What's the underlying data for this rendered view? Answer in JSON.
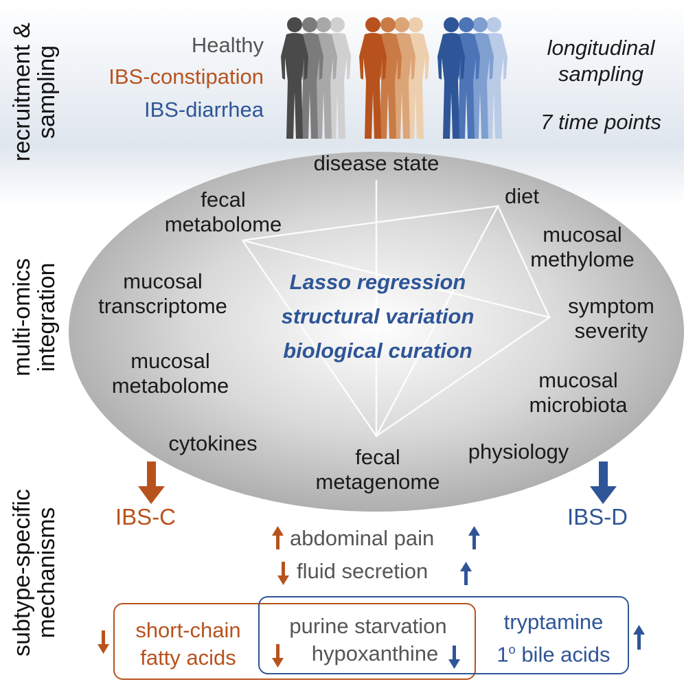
{
  "colors": {
    "healthy": "#555555",
    "ibs_c": "#b8521d",
    "ibs_d": "#2e5597",
    "method": "#2e5597",
    "gray_text": "#555555",
    "ellipse": "#b8b8b8"
  },
  "side_labels": {
    "recruitment": [
      "recruitment &",
      "sampling"
    ],
    "integration": [
      "multi-omics",
      "integration"
    ],
    "mechanisms": [
      "subtype-specific",
      "mechanisms"
    ]
  },
  "cohorts": {
    "healthy": "Healthy",
    "ibs_c": "IBS-constipation",
    "ibs_d": "IBS-diarrhea"
  },
  "sampling": {
    "line1": "longitudinal",
    "line2": "sampling",
    "time_points": "7 time points"
  },
  "nodes": {
    "disease_state": "disease state",
    "diet": "diet",
    "fecal_metabolome": [
      "fecal",
      "metabolome"
    ],
    "mucosal_methylome": [
      "mucosal",
      "methylome"
    ],
    "mucosal_transcriptome": [
      "mucosal",
      "transcriptome"
    ],
    "symptom_severity": [
      "symptom",
      "severity"
    ],
    "mucosal_metabolome": [
      "mucosal",
      "metabolome"
    ],
    "mucosal_microbiota": [
      "mucosal",
      "microbiota"
    ],
    "cytokines": "cytokines",
    "fecal_metagenome": [
      "fecal",
      "metagenome"
    ],
    "physiology": "physiology"
  },
  "methods": [
    "Lasso regression",
    "structural variation",
    "biological curation"
  ],
  "subtypes": {
    "ibs_c": "IBS-C",
    "ibs_d": "IBS-D"
  },
  "effects": {
    "abdominal_pain": "abdominal pain",
    "fluid_secretion": "fluid secretion"
  },
  "boxes": {
    "scfa": [
      "short-chain",
      "fatty acids"
    ],
    "purine": [
      "purine starvation",
      "hypoxanthine"
    ],
    "tryptamine": [
      "tryptamine",
      "bile acids"
    ],
    "tryptamine_prefix": "1",
    "degree_sup": "o"
  }
}
